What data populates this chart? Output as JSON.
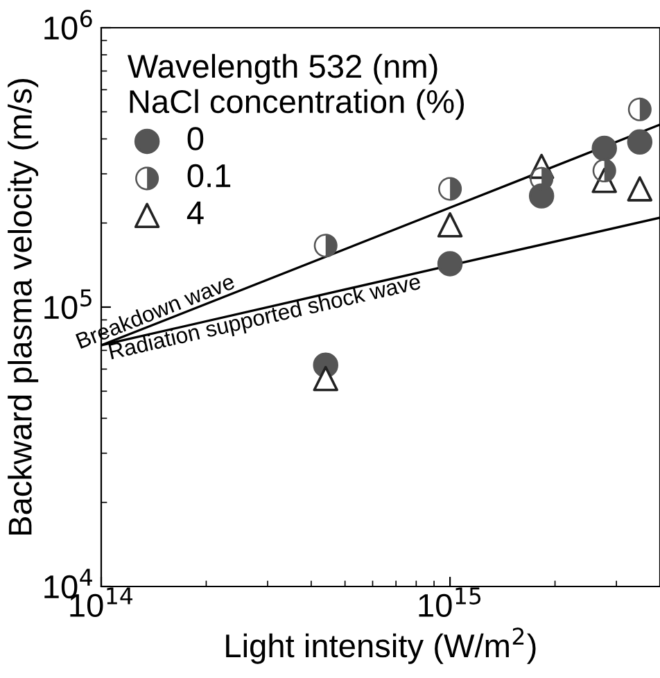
{
  "chart_data": {
    "type": "scatter",
    "xlabel": "Light intensity (W/m$^{2}$)",
    "ylabel": "Backward plasma velocity (m/s)",
    "legend_title": "Wavelength 532 (nm)\nNaCl concentration (%)",
    "log": "xy",
    "xlim": [
      100000000000000.0,
      4000000000000000.0
    ],
    "ylim": [
      10000.0,
      1000000.0
    ],
    "xticks": [
      {
        "value": 100000000000000.0,
        "label": "10$^{14}$"
      },
      {
        "value": 1000000000000000.0,
        "label": "10$^{15}$"
      }
    ],
    "yticks": [
      {
        "value": 10000.0,
        "label": "10$^{4}$"
      },
      {
        "value": 100000.0,
        "label": "10$^{5}$"
      },
      {
        "value": 1000000.0,
        "label": "10$^{6}$"
      }
    ],
    "x": [
      440000000000000.0,
      1000000000000000.0,
      1830000000000000.0,
      2770000000000000.0,
      3500000000000000.0
    ],
    "series": [
      {
        "name": "0",
        "color": "#555555",
        "marker": "circle",
        "values": [
          62000,
          143000,
          250000,
          370000,
          390000
        ]
      },
      {
        "name": "0.1",
        "color": "#555555",
        "marker": "circle",
        "values": [
          166000,
          265000,
          288000,
          308000,
          510000
        ]
      },
      {
        "name": "4",
        "color": "#222222",
        "marker": "triangle",
        "values": [
          55500,
          197000,
          319000,
          284000,
          265000
        ]
      },
      {
        "type": "line",
        "color": "#000000",
        "marker": "none",
        "x": [
          100000000000000.0,
          1000000000000000.0,
          4000000000000000.0
        ],
        "values": [
          73000,
          227000,
          450000
        ]
      },
      {
        "type": "line",
        "color": "#000000",
        "marker": "none",
        "x": [
          100000000000000.0,
          1000000000000000.0,
          4000000000000000.0
        ],
        "values": [
          73000,
          141000,
          209000
        ]
      }
    ],
    "annotations": [
      {
        "text": "Breakdown wave",
        "x": 147000000000000.0,
        "y": 88000
      },
      {
        "text": "Radiation supported shock wave",
        "x": 290000000000000.0,
        "y": 99000
      }
    ],
    "grid": false,
    "legend": "top left"
  }
}
